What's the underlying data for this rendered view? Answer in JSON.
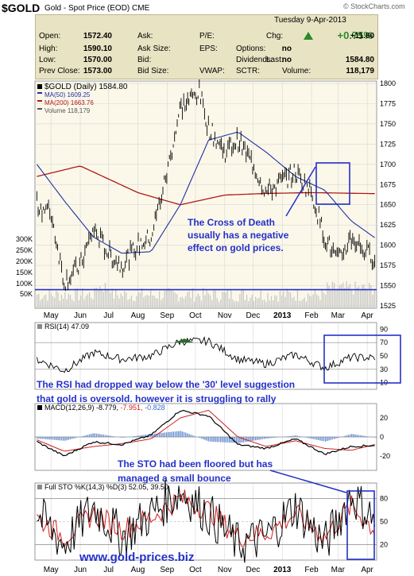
{
  "header": {
    "symbol": "$GOLD",
    "subtitle": "Gold - Spot Price (EOD)",
    "exchange": "CME",
    "watermark": "© StockCharts.com",
    "date": "Tuesday  9-Apr-2013",
    "change_pct": "+0.75%",
    "rows": [
      [
        {
          "l": "Open:",
          "v": "1572.40"
        },
        {
          "l": "Ask:",
          "v": ""
        },
        {
          "l": "P/E:",
          "v": ""
        },
        {
          "l": "Chg:",
          "v": "+11.80"
        }
      ],
      [
        {
          "l": "High:",
          "v": "1590.10"
        },
        {
          "l": "Ask Size:",
          "v": ""
        },
        {
          "l": "EPS:",
          "v": ""
        },
        {
          "l": "Options:",
          "v": "no"
        }
      ],
      [
        {
          "l": "Low:",
          "v": "1570.00"
        },
        {
          "l": "Bid:",
          "v": ""
        },
        {
          "l": "Dividends:",
          "v": "no"
        },
        {
          "l": "Last:",
          "v": "1584.80"
        }
      ],
      [
        {
          "l": "Prev Close:",
          "v": "1573.00"
        },
        {
          "l": "Bid Size:",
          "v": ""
        },
        {
          "l": "VWAP:",
          "v": ""
        },
        {
          "l": "SCTR:",
          "v": ""
        },
        {
          "l": "Volume:",
          "v": "118,179"
        }
      ]
    ]
  },
  "chart_data": [
    {
      "type": "line",
      "title": "$GOLD (Daily) 1584.80",
      "series": [
        {
          "name": "$GOLD (Daily) 1584.80",
          "color": "#000000",
          "x": [
            "2012-04-16",
            "2012-05-01",
            "2012-05-15",
            "2012-06-01",
            "2012-06-15",
            "2012-07-01",
            "2012-07-15",
            "2012-08-01",
            "2012-08-15",
            "2012-09-01",
            "2012-09-15",
            "2012-10-05",
            "2012-10-15",
            "2012-11-01",
            "2012-11-15",
            "2012-12-01",
            "2012-12-15",
            "2013-01-01",
            "2013-01-15",
            "2013-02-01",
            "2013-02-15",
            "2013-03-01",
            "2013-03-15",
            "2013-04-01",
            "2013-04-09"
          ],
          "y": [
            1650,
            1640,
            1555,
            1575,
            1620,
            1590,
            1575,
            1600,
            1610,
            1690,
            1770,
            1790,
            1745,
            1715,
            1730,
            1700,
            1665,
            1680,
            1690,
            1665,
            1610,
            1580,
            1610,
            1590,
            1585
          ]
        },
        {
          "name": "MA(50) 1609.25",
          "color": "#1f2fa0",
          "x": [
            "2012-04-16",
            "2012-05-15",
            "2012-06-15",
            "2012-07-15",
            "2012-08-15",
            "2012-09-15",
            "2012-10-15",
            "2012-11-15",
            "2012-12-15",
            "2013-01-15",
            "2013-02-15",
            "2013-03-15",
            "2013-04-09"
          ],
          "y": [
            1700,
            1655,
            1610,
            1590,
            1592,
            1650,
            1730,
            1740,
            1715,
            1685,
            1668,
            1630,
            1609.25
          ]
        },
        {
          "name": "MA(200) 1663.76",
          "color": "#b01818",
          "x": [
            "2012-04-16",
            "2012-06-01",
            "2012-08-01",
            "2012-09-15",
            "2012-11-01",
            "2012-12-15",
            "2013-02-01",
            "2013-04-09"
          ],
          "y": [
            1685,
            1698,
            1665,
            1650,
            1662,
            1664,
            1665,
            1663.76
          ]
        }
      ],
      "volume": {
        "name": "Volume 118,179",
        "ticks": [
          "300K",
          "250K",
          "200K",
          "150K",
          "100K",
          "50K"
        ]
      },
      "ylim": [
        1522,
        1803
      ],
      "yticks": [
        1525,
        1550,
        1575,
        1600,
        1625,
        1650,
        1675,
        1700,
        1725,
        1750,
        1775,
        1800
      ],
      "annotation": "The Cross of Death usually has a negative effect on gold prices."
    },
    {
      "type": "line",
      "title": "RSI(14) 47.09",
      "ylim": [
        0,
        100
      ],
      "yticks": [
        10,
        30,
        50,
        70,
        90
      ],
      "series": [
        {
          "name": "RSI(14) 47.09",
          "x": [
            "2012-04-16",
            "2012-05-15",
            "2012-06-15",
            "2012-07-15",
            "2012-08-15",
            "2012-09-15",
            "2012-10-15",
            "2012-11-15",
            "2012-12-15",
            "2013-01-15",
            "2013-02-15",
            "2013-03-15",
            "2013-04-09"
          ],
          "y": [
            45,
            28,
            55,
            45,
            50,
            72,
            72,
            45,
            38,
            52,
            32,
            48,
            47.09
          ]
        }
      ],
      "annotation": "The RSI had dropped way below the '30' level suggestion that gold is oversold. however it is struggling to rally"
    },
    {
      "type": "line",
      "title": "MACD(12,26,9) -8.779, -7.951, -0.828",
      "ylim": [
        -35,
        35
      ],
      "yticks": [
        -20,
        0,
        20
      ],
      "series": [
        {
          "name": "MACD(12,26,9) -8.779",
          "x": [
            "2012-04-16",
            "2012-05-15",
            "2012-06-15",
            "2012-07-15",
            "2012-08-15",
            "2012-09-15",
            "2012-10-15",
            "2012-11-15",
            "2012-12-15",
            "2013-01-15",
            "2013-02-15",
            "2013-03-15",
            "2013-04-09"
          ],
          "y": [
            -5,
            -20,
            -5,
            -8,
            2,
            28,
            22,
            -8,
            -12,
            -2,
            -18,
            -10,
            -8.779
          ]
        },
        {
          "name": "-7.951",
          "x": [
            "2012-04-16",
            "2012-05-15",
            "2012-06-15",
            "2012-07-15",
            "2012-08-15",
            "2012-09-15",
            "2012-10-15",
            "2012-11-15",
            "2012-12-15",
            "2013-01-15",
            "2013-02-15",
            "2013-03-15",
            "2013-04-09"
          ],
          "y": [
            -3,
            -15,
            -10,
            -7,
            -2,
            20,
            28,
            0,
            -10,
            -4,
            -12,
            -14,
            -7.951
          ]
        },
        {
          "name": "-0.828"
        }
      ],
      "annotation": "The STO had been floored but has managed a small bounce"
    },
    {
      "type": "line",
      "title": "Full STO %K(14,3) %D(3) 52.05, 39.50",
      "ylim": [
        0,
        100
      ],
      "yticks": [
        20,
        50,
        80
      ],
      "series": [
        {
          "name": "%K(14,3) 52.05",
          "x": [
            "2012-04-16",
            "2012-05-15",
            "2012-06-15",
            "2012-07-15",
            "2012-08-15",
            "2012-09-15",
            "2012-10-15",
            "2012-11-15",
            "2012-12-15",
            "2013-01-15",
            "2013-02-15",
            "2013-03-15",
            "2013-04-09"
          ],
          "y": [
            60,
            20,
            70,
            30,
            60,
            90,
            60,
            20,
            30,
            70,
            20,
            85,
            52.05
          ]
        },
        {
          "name": "%D(3) 39.50",
          "x": [
            "2012-04-16",
            "2012-05-15",
            "2012-06-15",
            "2012-07-15",
            "2012-08-15",
            "2012-09-15",
            "2012-10-15",
            "2012-11-15",
            "2012-12-15",
            "2013-01-15",
            "2013-02-15",
            "2013-03-15",
            "2013-04-09"
          ],
          "y": [
            55,
            30,
            60,
            40,
            55,
            80,
            65,
            30,
            35,
            60,
            30,
            70,
            39.5
          ]
        }
      ],
      "watermark": "www.gold-prices.biz"
    }
  ],
  "x_labels": [
    "May",
    "Jun",
    "Jul",
    "Aug",
    "Sep",
    "Oct",
    "Nov",
    "Dec",
    "2013",
    "Feb",
    "Mar",
    "Apr"
  ],
  "x_label_dates": [
    "2012-05-01",
    "2012-06-01",
    "2012-07-01",
    "2012-08-01",
    "2012-09-01",
    "2012-10-01",
    "2012-11-01",
    "2012-12-01",
    "2013-01-01",
    "2013-02-01",
    "2013-03-01",
    "2013-04-01"
  ],
  "x_range": [
    "2012-04-14",
    "2013-04-11"
  ],
  "colors": {
    "grid": "#d6d6d6",
    "border": "#9a9a9a",
    "annotation": "#2431c8",
    "ma200": "#b01818",
    "ma50": "#1f2fa0",
    "volume": "#c8c8c8",
    "rsi_fill": "#2c6b2c",
    "macd_hist": "#6a8fd0"
  }
}
